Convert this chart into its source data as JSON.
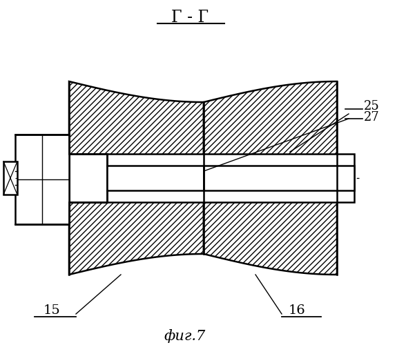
{
  "title": "Г - Г",
  "subtitle": "фиг.7",
  "label_15": "15",
  "label_16": "16",
  "label_25": "25",
  "label_27": "27",
  "bg_color": "#ffffff",
  "line_color": "#000000",
  "figsize": [
    5.88,
    5.0
  ],
  "dpi": 100
}
